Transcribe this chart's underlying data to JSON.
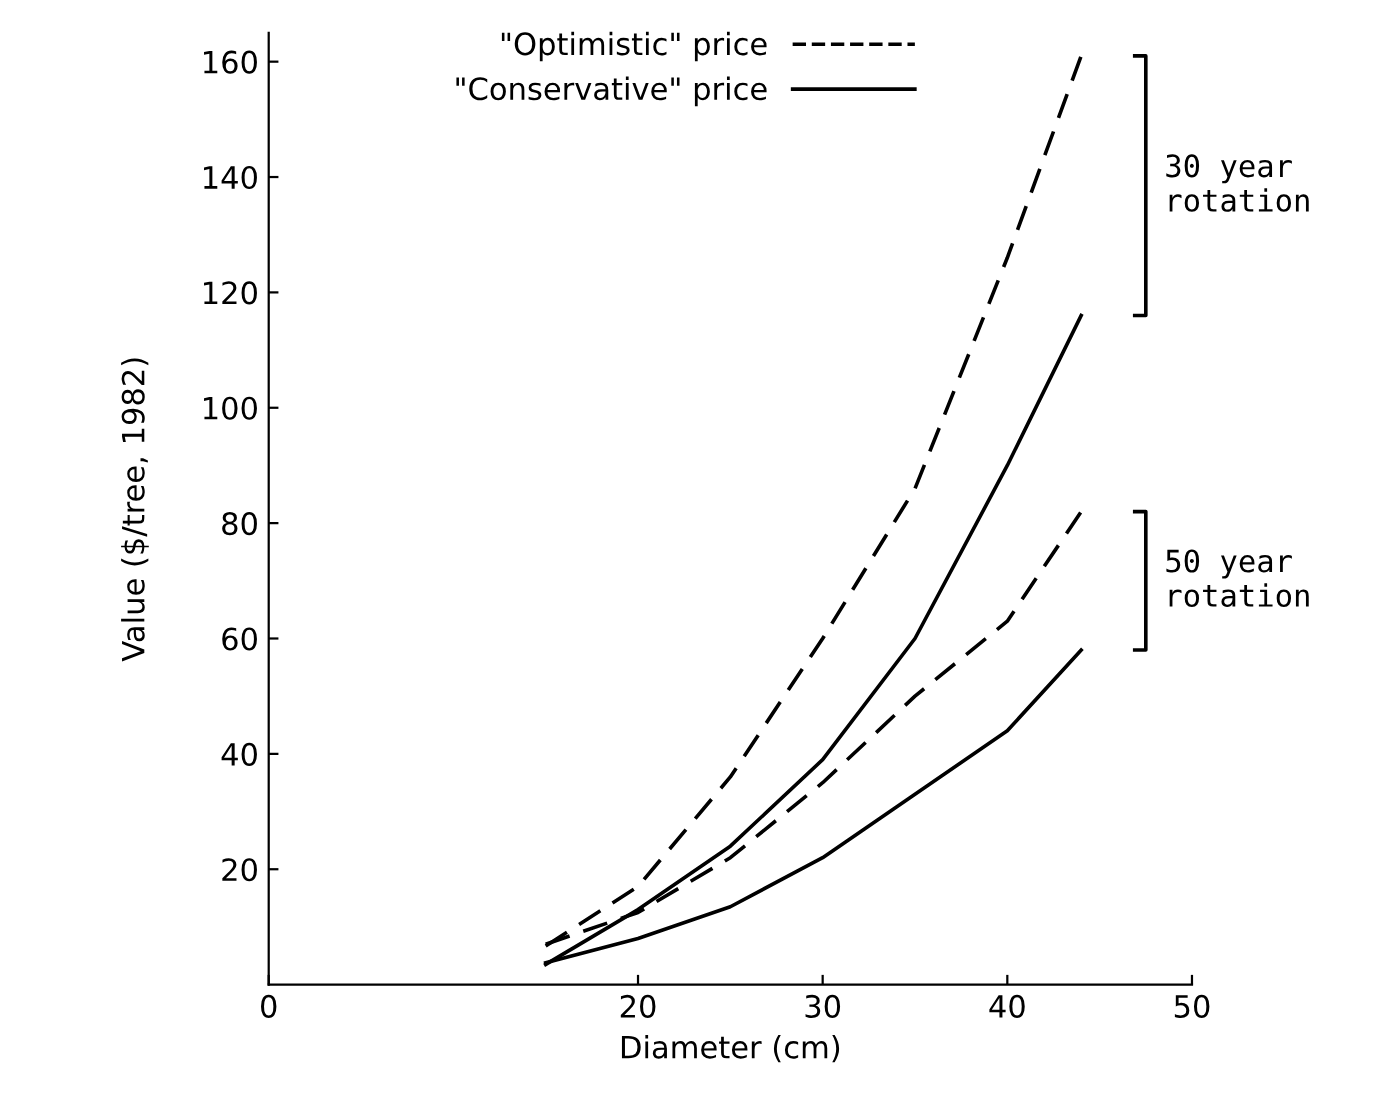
{
  "chart_data": {
    "type": "line",
    "xlabel": "Diameter (cm)",
    "ylabel": "Value ($/tree, 1982)",
    "x": [
      15,
      20,
      25,
      30,
      35,
      40,
      44
    ],
    "xlim": [
      0,
      50
    ],
    "xticks": [
      0,
      20,
      30,
      40,
      50
    ],
    "ylim": [
      0,
      165
    ],
    "yticks": [
      20,
      40,
      60,
      80,
      100,
      120,
      140,
      160
    ],
    "grid": false,
    "legend": "top",
    "series": [
      {
        "name": "\"Optimistic\" price",
        "color": "#000000",
        "line_style": "dashed",
        "values": [
          6.7,
          17,
          36,
          60,
          86,
          126,
          161
        ]
      },
      {
        "name": "\"Conservative\" price",
        "color": "#000000",
        "line_style": "solid",
        "values": [
          3.5,
          13,
          24,
          39,
          60,
          90,
          116
        ]
      },
      {
        "color": "#000000",
        "line_style": "dashed",
        "values": [
          7,
          12.5,
          22,
          35,
          50,
          63,
          82
        ]
      },
      {
        "color": "#000000",
        "line_style": "solid",
        "values": [
          3.8,
          8,
          13.5,
          22,
          33,
          44,
          58
        ]
      }
    ],
    "annotations": [
      "30 year\nrotation",
      "50 year\nrotation"
    ]
  }
}
